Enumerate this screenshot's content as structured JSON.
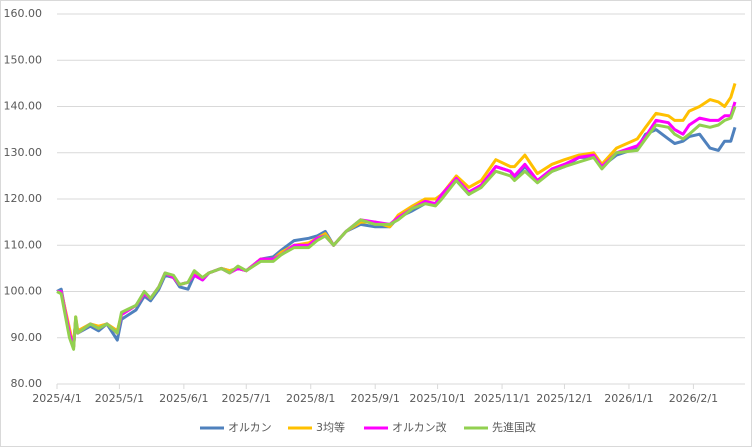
{
  "chart_data": {
    "type": "line",
    "x": [
      "2025/4/1",
      "2025/4/3",
      "2025/4/7",
      "2025/4/9",
      "2025/4/10",
      "2025/4/11",
      "2025/4/17",
      "2025/4/21",
      "2025/4/25",
      "2025/4/30",
      "2025/5/2",
      "2025/5/9",
      "2025/5/13",
      "2025/5/16",
      "2025/5/20",
      "2025/5/23",
      "2025/5/27",
      "2025/5/30",
      "2025/6/3",
      "2025/6/6",
      "2025/6/10",
      "2025/6/13",
      "2025/6/19",
      "2025/6/23",
      "2025/6/27",
      "2025/7/1",
      "2025/7/8",
      "2025/7/14",
      "2025/7/18",
      "2025/7/24",
      "2025/7/31",
      "2025/8/4",
      "2025/8/8",
      "2025/8/12",
      "2025/8/18",
      "2025/8/25",
      "2025/9/1",
      "2025/9/8",
      "2025/9/12",
      "2025/9/19",
      "2025/9/25",
      "2025/9/30",
      "2025/10/3",
      "2025/10/10",
      "2025/10/16",
      "2025/10/22",
      "2025/10/29",
      "2025/11/5",
      "2025/11/7",
      "2025/11/12",
      "2025/11/18",
      "2025/11/25",
      "2025/12/1",
      "2025/12/8",
      "2025/12/15",
      "2025/12/19",
      "2025/12/26",
      "2026/1/5",
      "2026/1/9",
      "2026/1/14",
      "2026/1/20",
      "2026/1/23",
      "2026/1/27",
      "2026/1/30",
      "2026/2/4",
      "2026/2/9",
      "2026/2/13",
      "2026/2/16",
      "2026/2/19",
      "2026/2/21"
    ],
    "series": [
      {
        "name": "オルカン",
        "color": "#4f81bd",
        "values": [
          100,
          100.5,
          91,
          88,
          94,
          91,
          92.5,
          91.5,
          93,
          89.5,
          94,
          96,
          99,
          98,
          100.5,
          103.5,
          103,
          101,
          100.5,
          103.5,
          102.5,
          104,
          105,
          104.5,
          105,
          104.5,
          107,
          107.5,
          109,
          111,
          111.5,
          112,
          113,
          110,
          113,
          114.5,
          114,
          114,
          116,
          117.5,
          119,
          119,
          121,
          124,
          121,
          123,
          127,
          126,
          124.5,
          127,
          124,
          126,
          127,
          129,
          129,
          127,
          129.5,
          131,
          134,
          135,
          133,
          132,
          132.5,
          133.5,
          134,
          131,
          130.5,
          132.5,
          132.5,
          135.5
        ]
      },
      {
        "name": "3均等",
        "color": "#ffc000",
        "values": [
          100,
          100,
          92,
          88,
          94.5,
          91.5,
          93,
          92.5,
          93,
          91.5,
          95,
          97,
          99.5,
          98.5,
          101,
          104,
          103,
          101.5,
          102,
          104,
          103,
          104,
          105,
          104.5,
          105,
          104.5,
          107,
          107,
          108.5,
          110,
          110.5,
          111.5,
          112.5,
          110,
          113,
          115,
          115,
          114,
          116.5,
          118.5,
          120,
          120,
          121,
          125,
          122.5,
          124,
          128.5,
          127,
          127,
          129.5,
          125.5,
          127.5,
          128.5,
          129.5,
          130,
          127.5,
          131,
          133,
          135.5,
          138.5,
          138,
          137,
          137,
          139,
          140,
          141.5,
          141,
          140,
          142,
          145
        ]
      },
      {
        "name": "オルカン改",
        "color": "#ff00ff",
        "values": [
          100,
          100,
          91,
          88,
          94,
          91,
          93,
          92,
          93,
          91,
          95,
          97,
          99.5,
          98.5,
          101,
          104,
          103,
          101.5,
          102,
          103.5,
          102.5,
          104,
          105,
          104,
          105,
          104.5,
          107,
          107,
          108,
          110,
          110,
          111.5,
          112,
          110,
          113,
          115.5,
          115,
          114.5,
          116,
          118,
          119.5,
          119,
          121,
          124.5,
          121.5,
          123,
          127,
          126,
          125,
          127.5,
          124,
          126.5,
          127.5,
          129,
          129.5,
          127,
          130,
          131.5,
          133.5,
          137,
          136.5,
          135,
          134,
          136,
          137.5,
          137,
          137,
          138,
          138,
          141
        ]
      },
      {
        "name": "先進国改",
        "color": "#92d050",
        "values": [
          100,
          99.5,
          90,
          87.5,
          94.5,
          91,
          93,
          92,
          93,
          91,
          95.5,
          97,
          100,
          98.5,
          101,
          104,
          103.5,
          101.5,
          102,
          104.5,
          103,
          104,
          105,
          104,
          105.5,
          104.5,
          106.5,
          106.5,
          108,
          109.5,
          109.5,
          111,
          112,
          110,
          113,
          115.5,
          114.5,
          114.5,
          115.5,
          118,
          119,
          118.5,
          120,
          124,
          121,
          122.5,
          126,
          125,
          124,
          126,
          123.5,
          126,
          127,
          128,
          129,
          126.5,
          130,
          130.5,
          133,
          136,
          135.5,
          134,
          133,
          134,
          136,
          135.5,
          136,
          137,
          137.5,
          140
        ]
      }
    ],
    "xlim": [
      "2025/4/1",
      "2026/2/21"
    ],
    "xticks": [
      "2025/4/1",
      "2025/5/1",
      "2025/6/1",
      "2025/7/1",
      "2025/8/1",
      "2025/9/1",
      "2025/10/1",
      "2025/11/1",
      "2025/12/1",
      "2026/1/1",
      "2026/2/1"
    ],
    "ylim": [
      80,
      160
    ],
    "yticks": [
      {
        "value": 80,
        "label": "80.00"
      },
      {
        "value": 90,
        "label": "90.00"
      },
      {
        "value": 100,
        "label": "100.00"
      },
      {
        "value": 110,
        "label": "110.00"
      },
      {
        "value": 120,
        "label": "120.00"
      },
      {
        "value": 130,
        "label": "130.00"
      },
      {
        "value": 140,
        "label": "140.00"
      },
      {
        "value": 150,
        "label": "150.00"
      },
      {
        "value": 160,
        "label": "160.00"
      }
    ],
    "grid": true,
    "legend": "bottom"
  }
}
